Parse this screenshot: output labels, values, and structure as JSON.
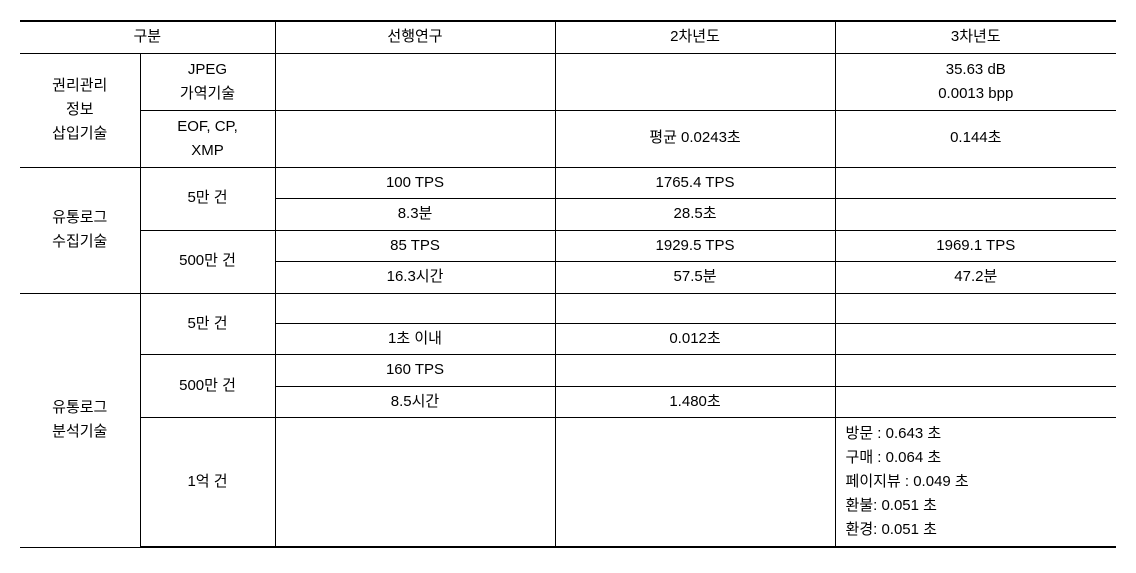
{
  "headers": {
    "category": "구분",
    "prior_research": "선행연구",
    "year2": "2차년도",
    "year3": "3차년도"
  },
  "sections": {
    "rights_mgmt": {
      "label": "권리관리\n정보\n삽입기술",
      "jpeg": {
        "label": "JPEG\n가역기술",
        "y3_line1": "35.63 dB",
        "y3_line2": "0.0013 bpp"
      },
      "eof": {
        "label": "EOF, CP,\nXMP",
        "y2": "평균 0.0243초",
        "y3": "0.144초"
      }
    },
    "log_collect": {
      "label": "유통로그\n수집기술",
      "r50k": {
        "label": "5만 건",
        "row1": {
          "prior": "100 TPS",
          "y2": "1765.4 TPS",
          "y3": ""
        },
        "row2": {
          "prior": "8.3분",
          "y2": "28.5초",
          "y3": ""
        }
      },
      "r5m": {
        "label": "500만 건",
        "row1": {
          "prior": "85 TPS",
          "y2": "1929.5 TPS",
          "y3": "1969.1 TPS"
        },
        "row2": {
          "prior": "16.3시간",
          "y2": "57.5분",
          "y3": "47.2분"
        }
      }
    },
    "log_analyze": {
      "label": "유통로그\n분석기술",
      "r50k": {
        "label": "5만 건",
        "row1": {
          "prior": "",
          "y2": "",
          "y3": ""
        },
        "row2": {
          "prior": "1초 이내",
          "y2": "0.012초",
          "y3": ""
        }
      },
      "r5m": {
        "label": "500만 건",
        "row1": {
          "prior": "160 TPS",
          "y2": "",
          "y3": ""
        },
        "row2": {
          "prior": "8.5시간",
          "y2": "1.480초",
          "y3": ""
        }
      },
      "r100m": {
        "label": "1억 건",
        "y3_lines": {
          "visit": "방문 : 0.643 초",
          "purchase": "구매 : 0.064 초",
          "pageview": "페이지뷰 : 0.049 초",
          "refund": "환불: 0.051 초",
          "env": "환경: 0.051 초"
        }
      }
    }
  }
}
